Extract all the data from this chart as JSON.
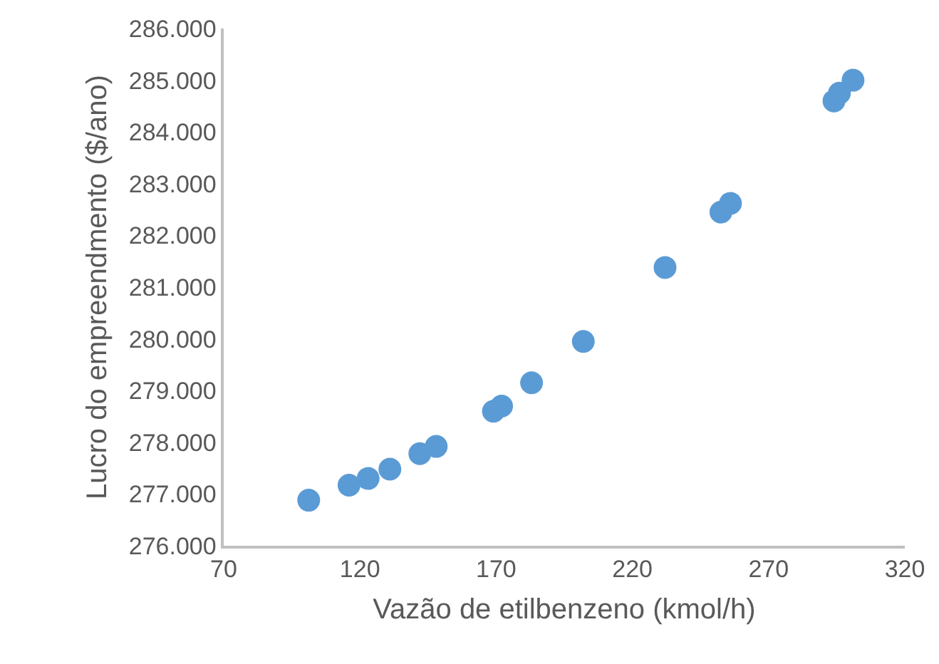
{
  "chart_data": {
    "type": "scatter",
    "xlabel": "Vazão de etilbenzeno (kmol/h)",
    "ylabel": "Lucro do empreendmento ($/ano)",
    "xlim": [
      70,
      320
    ],
    "xticks": [
      70,
      120,
      170,
      220,
      270,
      320
    ],
    "ylim": [
      276000,
      286000
    ],
    "yticks": [
      {
        "value": 276000,
        "label": "276.000"
      },
      {
        "value": 277000,
        "label": "277.000"
      },
      {
        "value": 278000,
        "label": "278.000"
      },
      {
        "value": 279000,
        "label": "279.000"
      },
      {
        "value": 280000,
        "label": "280.000"
      },
      {
        "value": 281000,
        "label": "281.000"
      },
      {
        "value": 282000,
        "label": "282.000"
      },
      {
        "value": 283000,
        "label": "283.000"
      },
      {
        "value": 284000,
        "label": "284.000"
      },
      {
        "value": 285000,
        "label": "285.000"
      },
      {
        "value": 286000,
        "label": "286.000"
      }
    ],
    "grid": false,
    "marker": "circle",
    "series": [
      {
        "color": "#5b9bd5",
        "x": [
          101.2,
          116,
          123,
          131,
          142,
          148,
          169,
          172,
          183,
          202,
          232,
          252.5,
          256,
          294,
          296,
          301
        ],
        "values": [
          276880,
          277170,
          277300,
          277480,
          277780,
          277920,
          278600,
          278700,
          279150,
          279950,
          281380,
          282450,
          282620,
          284600,
          284750,
          285000
        ]
      }
    ]
  }
}
